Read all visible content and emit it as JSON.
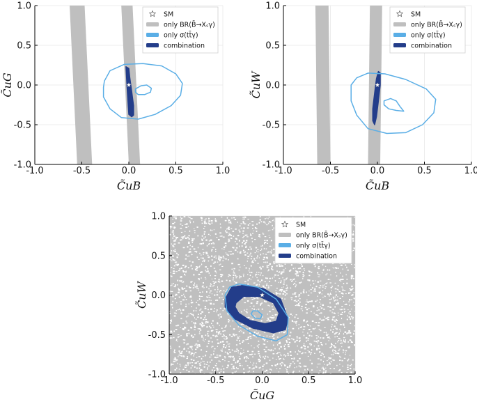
{
  "colors": {
    "br_band": "#bfbfbf",
    "ttgamma": "#5aaee6",
    "combination": "#233d8a",
    "sm_marker": "#ffffff",
    "axis": "#000000",
    "grid": "#ececec"
  },
  "legend_entries": [
    {
      "key": "sm",
      "label": "SM",
      "icon": "star-icon"
    },
    {
      "key": "br",
      "label": "only BR(B̄→Xₛγ)",
      "icon": "gray-bar"
    },
    {
      "key": "tt",
      "label": "only σ(tt̄γ)",
      "icon": "lightblue-bar"
    },
    {
      "key": "comb",
      "label": "combination",
      "icon": "darkblue-bar"
    }
  ],
  "chart_data": [
    {
      "type": "contour",
      "id": "uB-uG",
      "xlabel": "C̃uB",
      "ylabel": "C̃uG",
      "xlim": [
        -1.0,
        1.0
      ],
      "ylim": [
        -1.0,
        1.0
      ],
      "xticks": [
        "-1.0",
        "-0.5",
        "0.0",
        "0.5",
        "1.0"
      ],
      "yticks": [
        "-1.0",
        "-0.5",
        "0.0",
        "0.5",
        "1.0"
      ],
      "legend_position": "top-right",
      "sm_point": [
        0.0,
        0.0
      ],
      "br_bands": [
        [
          [
            -0.63,
            1.0
          ],
          [
            -0.47,
            1.0
          ],
          [
            -0.39,
            -1.0
          ],
          [
            -0.55,
            -1.0
          ]
        ],
        [
          [
            -0.08,
            1.0
          ],
          [
            0.04,
            1.0
          ],
          [
            0.12,
            -1.0
          ],
          [
            0.0,
            -1.0
          ]
        ]
      ],
      "ttgamma_contours": [
        [
          [
            -0.26,
            0.05
          ],
          [
            -0.2,
            0.18
          ],
          [
            -0.05,
            0.26
          ],
          [
            0.15,
            0.27
          ],
          [
            0.35,
            0.24
          ],
          [
            0.5,
            0.14
          ],
          [
            0.57,
            0.02
          ],
          [
            0.55,
            -0.13
          ],
          [
            0.45,
            -0.26
          ],
          [
            0.28,
            -0.37
          ],
          [
            0.1,
            -0.43
          ],
          [
            -0.08,
            -0.41
          ],
          [
            -0.2,
            -0.3
          ],
          [
            -0.27,
            -0.15
          ],
          [
            -0.27,
            -0.03
          ],
          [
            -0.26,
            0.05
          ]
        ],
        [
          [
            0.07,
            -0.05
          ],
          [
            0.13,
            -0.01
          ],
          [
            0.19,
            -0.0
          ],
          [
            0.24,
            -0.04
          ],
          [
            0.23,
            -0.09
          ],
          [
            0.17,
            -0.12
          ],
          [
            0.1,
            -0.12
          ],
          [
            0.07,
            -0.09
          ],
          [
            0.07,
            -0.05
          ]
        ]
      ],
      "combination_contours": [
        [
          [
            -0.03,
            0.23
          ],
          [
            0.0,
            0.21
          ],
          [
            0.01,
            0.1
          ],
          [
            0.03,
            -0.08
          ],
          [
            0.05,
            -0.26
          ],
          [
            0.05,
            -0.38
          ],
          [
            0.03,
            -0.4
          ],
          [
            0.0,
            -0.37
          ],
          [
            -0.01,
            -0.2
          ],
          [
            -0.02,
            0.0
          ],
          [
            -0.03,
            0.23
          ]
        ]
      ]
    },
    {
      "type": "contour",
      "id": "uB-uW",
      "xlabel": "C̃uB",
      "ylabel": "C̃uW",
      "xlim": [
        -1.0,
        1.0
      ],
      "ylim": [
        -1.0,
        1.0
      ],
      "xticks": [
        "-1.0",
        "-0.5",
        "0.0",
        "0.5",
        "1.0"
      ],
      "yticks": [
        "-1.0",
        "-0.5",
        "0.0",
        "0.5",
        "1.0"
      ],
      "legend_position": "top-right",
      "sm_point": [
        0.0,
        0.0
      ],
      "br_bands": [
        [
          [
            -0.66,
            1.0
          ],
          [
            -0.52,
            1.0
          ],
          [
            -0.5,
            -1.0
          ],
          [
            -0.64,
            -1.0
          ]
        ],
        [
          [
            -0.08,
            1.0
          ],
          [
            0.05,
            1.0
          ],
          [
            0.03,
            -1.0
          ],
          [
            -0.1,
            -1.0
          ]
        ]
      ],
      "ttgamma_contours": [
        [
          [
            -0.28,
            0.0
          ],
          [
            -0.22,
            0.09
          ],
          [
            -0.1,
            0.15
          ],
          [
            0.08,
            0.14
          ],
          [
            0.3,
            0.07
          ],
          [
            0.52,
            -0.05
          ],
          [
            0.62,
            -0.18
          ],
          [
            0.6,
            -0.35
          ],
          [
            0.48,
            -0.5
          ],
          [
            0.3,
            -0.6
          ],
          [
            0.1,
            -0.61
          ],
          [
            -0.1,
            -0.55
          ],
          [
            -0.22,
            -0.38
          ],
          [
            -0.28,
            -0.2
          ],
          [
            -0.28,
            0.0
          ]
        ],
        [
          [
            0.07,
            -0.2
          ],
          [
            0.14,
            -0.17
          ],
          [
            0.2,
            -0.2
          ],
          [
            0.24,
            -0.27
          ],
          [
            0.28,
            -0.33
          ],
          [
            0.2,
            -0.32
          ],
          [
            0.12,
            -0.3
          ],
          [
            0.07,
            -0.25
          ],
          [
            0.07,
            -0.2
          ]
        ]
      ],
      "combination_contours": [
        [
          [
            0.01,
            0.17
          ],
          [
            0.03,
            0.15
          ],
          [
            0.03,
            0.0
          ],
          [
            0.01,
            -0.2
          ],
          [
            -0.01,
            -0.4
          ],
          [
            -0.03,
            -0.5
          ],
          [
            -0.05,
            -0.45
          ],
          [
            -0.05,
            -0.3
          ],
          [
            -0.03,
            -0.1
          ],
          [
            -0.01,
            0.08
          ],
          [
            0.01,
            0.17
          ]
        ]
      ]
    },
    {
      "type": "contour",
      "id": "uG-uW",
      "xlabel": "C̃uG",
      "ylabel": "C̃uW",
      "xlim": [
        -1.0,
        1.0
      ],
      "ylim": [
        -1.0,
        1.0
      ],
      "xticks": [
        "-1.0",
        "-0.5",
        "0.0",
        "0.5",
        "1.0"
      ],
      "yticks": [
        "-1.0",
        "-0.5",
        "0.0",
        "0.5",
        "1.0"
      ],
      "legend_position": "top-right",
      "sm_point": [
        0.0,
        0.0
      ],
      "br_fill": "full-region",
      "ttgamma_contours": [
        [
          [
            -0.4,
            0.0
          ],
          [
            -0.35,
            0.1
          ],
          [
            -0.25,
            0.14
          ],
          [
            -0.05,
            0.1
          ],
          [
            0.15,
            -0.05
          ],
          [
            0.28,
            -0.28
          ],
          [
            0.27,
            -0.5
          ],
          [
            0.15,
            -0.58
          ],
          [
            -0.05,
            -0.52
          ],
          [
            -0.25,
            -0.38
          ],
          [
            -0.38,
            -0.2
          ],
          [
            -0.4,
            0.0
          ]
        ],
        [
          [
            -0.1,
            -0.2
          ],
          [
            -0.05,
            -0.2
          ],
          [
            0.0,
            -0.25
          ],
          [
            -0.02,
            -0.3
          ],
          [
            -0.08,
            -0.29
          ],
          [
            -0.12,
            -0.24
          ],
          [
            -0.1,
            -0.2
          ]
        ]
      ],
      "combination_rings": [
        {
          "outer": [
            [
              -0.4,
              -0.05
            ],
            [
              -0.33,
              0.1
            ],
            [
              -0.18,
              0.13
            ],
            [
              0.02,
              0.08
            ],
            [
              0.2,
              -0.05
            ],
            [
              0.28,
              -0.3
            ],
            [
              0.25,
              -0.44
            ],
            [
              0.12,
              -0.48
            ],
            [
              -0.1,
              -0.42
            ],
            [
              -0.3,
              -0.3
            ],
            [
              -0.4,
              -0.15
            ],
            [
              -0.4,
              -0.05
            ]
          ],
          "inner": [
            [
              -0.28,
              -0.1
            ],
            [
              -0.2,
              -0.02
            ],
            [
              -0.03,
              -0.02
            ],
            [
              0.12,
              -0.1
            ],
            [
              0.18,
              -0.23
            ],
            [
              0.15,
              -0.33
            ],
            [
              0.03,
              -0.36
            ],
            [
              -0.13,
              -0.32
            ],
            [
              -0.25,
              -0.23
            ],
            [
              -0.29,
              -0.15
            ],
            [
              -0.28,
              -0.1
            ]
          ]
        }
      ]
    }
  ]
}
